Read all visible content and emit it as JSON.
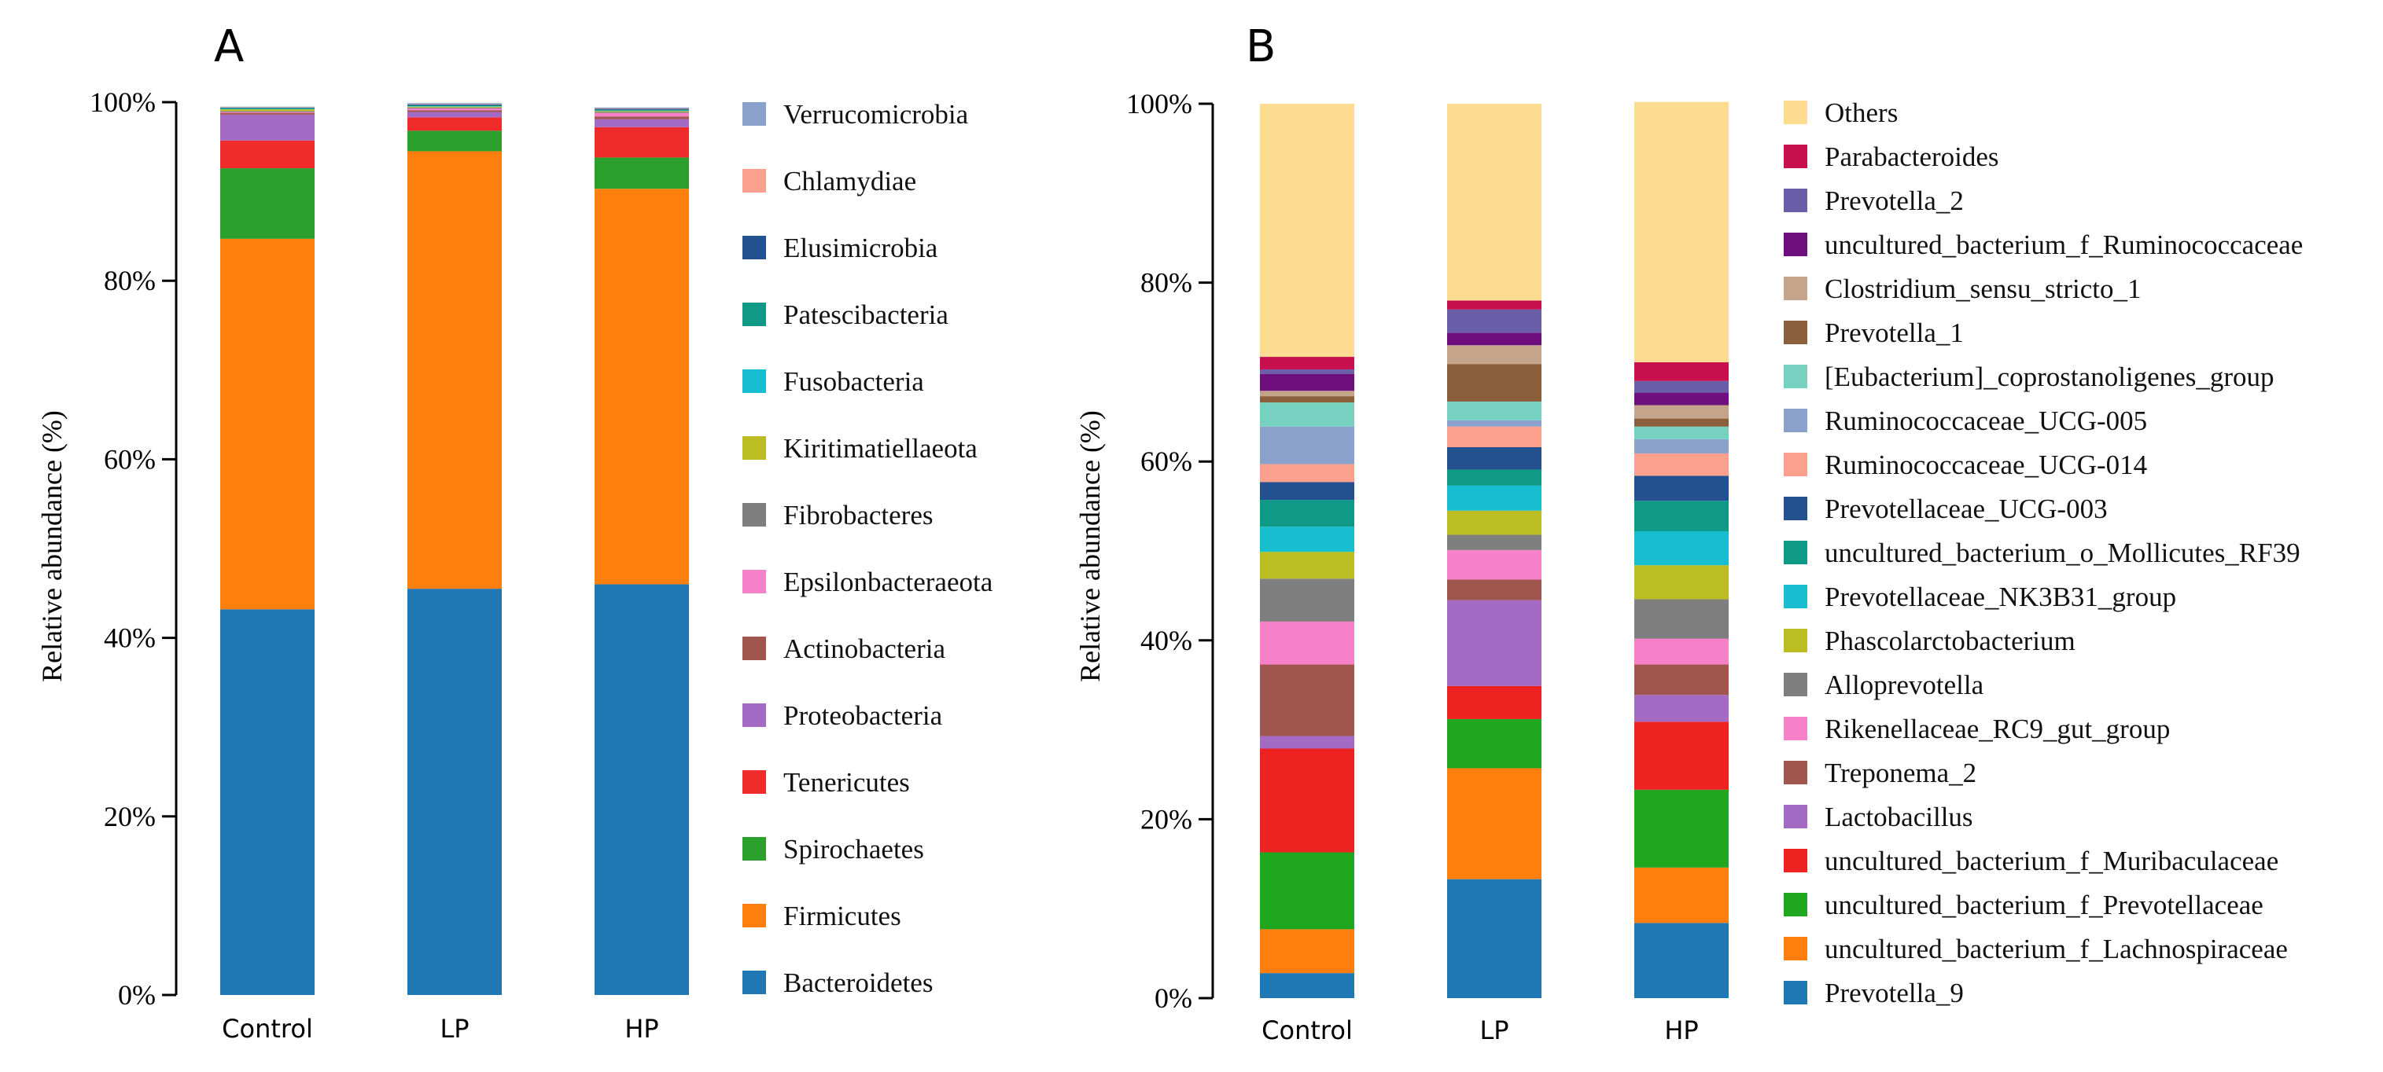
{
  "chart_data": [
    {
      "panel": "A",
      "type": "bar",
      "stacked": true,
      "ylabel": "Relative abundance (%)",
      "ylim": [
        0,
        100
      ],
      "yticks": [
        "0%",
        "20%",
        "40%",
        "60%",
        "80%",
        "100%"
      ],
      "categories": [
        "Control",
        "LP",
        "HP"
      ],
      "legend_position": "right",
      "series": [
        {
          "name": "Bacteroidetes",
          "color": "#1f77b4",
          "values": [
            43.2,
            45.5,
            46.0
          ]
        },
        {
          "name": "Firmicutes",
          "color": "#ff7f0e",
          "values": [
            41.5,
            49.0,
            44.3
          ]
        },
        {
          "name": "Spirochaetes",
          "color": "#2ca02c",
          "values": [
            7.9,
            2.3,
            3.5
          ]
        },
        {
          "name": "Tenericutes",
          "color": "#ef2b2b",
          "values": [
            3.1,
            1.5,
            3.4
          ]
        },
        {
          "name": "Proteobacteria",
          "color": "#a36bc4",
          "values": [
            2.9,
            0.6,
            0.9
          ]
        },
        {
          "name": "Actinobacteria",
          "color": "#a0554e",
          "values": [
            0.2,
            0.2,
            0.3
          ]
        },
        {
          "name": "Epsilonbacteraeota",
          "color": "#f781c8",
          "values": [
            0.1,
            0.2,
            0.4
          ]
        },
        {
          "name": "Fibrobacteres",
          "color": "#7f7f7f",
          "values": [
            0.1,
            0.1,
            0.1
          ]
        },
        {
          "name": "Kiritimatiellaeota",
          "color": "#bcbd22",
          "values": [
            0.2,
            0.1,
            0.1
          ]
        },
        {
          "name": "Fusobacteria",
          "color": "#17becf",
          "values": [
            0.05,
            0.05,
            0.05
          ]
        },
        {
          "name": "Patescibacteria",
          "color": "#0f9a88",
          "values": [
            0.1,
            0.1,
            0.1
          ]
        },
        {
          "name": "Elusimicrobia",
          "color": "#23508e",
          "values": [
            0.05,
            0.1,
            0.1
          ]
        },
        {
          "name": "Chlamydiae",
          "color": "#fba08c",
          "values": [
            0.05,
            0.05,
            0.05
          ]
        },
        {
          "name": "Verrucomicrobia",
          "color": "#8aa1cc",
          "values": [
            0.05,
            0.1,
            0.1
          ]
        }
      ]
    },
    {
      "panel": "B",
      "type": "bar",
      "stacked": true,
      "ylabel": "Relative abundance (%)",
      "ylim": [
        0,
        100
      ],
      "yticks": [
        "0%",
        "20%",
        "40%",
        "60%",
        "80%",
        "100%"
      ],
      "categories": [
        "Control",
        "LP",
        "HP"
      ],
      "legend_position": "right",
      "series": [
        {
          "name": "Prevotella_9",
          "color": "#1f77b4",
          "values": [
            2.8,
            13.3,
            8.4
          ]
        },
        {
          "name": "uncultured_bacterium_f_Lachnospiraceae",
          "color": "#ff7f0e",
          "values": [
            4.9,
            12.4,
            6.2
          ]
        },
        {
          "name": "uncultured_bacterium_f_Prevotellaceae",
          "color": "#1fa81f",
          "values": [
            8.6,
            5.5,
            8.7
          ]
        },
        {
          "name": "uncultured_bacterium_f_Muribaculaceae",
          "color": "#ef2222",
          "values": [
            11.6,
            3.7,
            7.6
          ]
        },
        {
          "name": "Lactobacillus",
          "color": "#a36bc4",
          "values": [
            1.4,
            9.6,
            3.0
          ]
        },
        {
          "name": "Treponema_2",
          "color": "#a0554e",
          "values": [
            8.0,
            2.3,
            3.4
          ]
        },
        {
          "name": "Rikenellaceae_RC9_gut_group",
          "color": "#f781c8",
          "values": [
            4.8,
            3.3,
            2.9
          ]
        },
        {
          "name": "Alloprevotella",
          "color": "#7f7f7f",
          "values": [
            4.8,
            1.7,
            4.4
          ]
        },
        {
          "name": "Phascolarctobacterium",
          "color": "#bcbd22",
          "values": [
            3.0,
            2.7,
            3.8
          ]
        },
        {
          "name": "Prevotellaceae_NK3B31_group",
          "color": "#17becf",
          "values": [
            2.8,
            2.8,
            3.8
          ]
        },
        {
          "name": "uncultured_bacterium_o_Mollicutes_RF39",
          "color": "#0f9a88",
          "values": [
            3.0,
            1.8,
            3.4
          ]
        },
        {
          "name": "Prevotellaceae_UCG-003",
          "color": "#23508e",
          "values": [
            2.0,
            2.5,
            2.8
          ]
        },
        {
          "name": "Ruminococcaceae_UCG-014",
          "color": "#fba08c",
          "values": [
            2.0,
            2.3,
            2.5
          ]
        },
        {
          "name": "Ruminococcaceae_UCG-005",
          "color": "#8aa1cc",
          "values": [
            4.2,
            0.7,
            1.6
          ]
        },
        {
          "name": "[Eubacterium]_coprostanoligenes_group",
          "color": "#76d1c0",
          "values": [
            2.7,
            2.1,
            1.4
          ]
        },
        {
          "name": "Prevotella_1",
          "color": "#8b5e3c",
          "values": [
            0.7,
            4.2,
            0.9
          ]
        },
        {
          "name": "Clostridium_sensu_stricto_1",
          "color": "#c4a48a",
          "values": [
            0.6,
            2.1,
            1.5
          ]
        },
        {
          "name": "uncultured_bacterium_f_Ruminococcaceae",
          "color": "#6f0f7f",
          "values": [
            1.9,
            1.4,
            1.4
          ]
        },
        {
          "name": "Prevotella_2",
          "color": "#6a5ea8",
          "values": [
            0.5,
            2.6,
            1.3
          ]
        },
        {
          "name": "Parabacteroides",
          "color": "#c8104e",
          "values": [
            1.4,
            1.0,
            2.1
          ]
        },
        {
          "name": "Others",
          "color": "#fcdc90",
          "values": [
            28.3,
            22.0,
            29.1
          ]
        }
      ]
    }
  ]
}
